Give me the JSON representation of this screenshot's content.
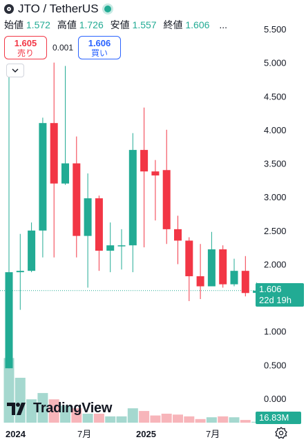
{
  "header": {
    "title": "JTO / TetherUS",
    "ohlc": [
      {
        "label": "始値",
        "value": "1.572"
      },
      {
        "label": "高値",
        "value": "1.726"
      },
      {
        "label": "安値",
        "value": "1.557"
      },
      {
        "label": "終値",
        "value": "1.606"
      }
    ],
    "more": "..."
  },
  "trade": {
    "sell_price": "1.605",
    "sell_label": "売り",
    "spread": "0.001",
    "buy_price": "1.606",
    "buy_label": "買い"
  },
  "price_label": {
    "price": "1.606",
    "countdown": "22d 19h"
  },
  "volume_label": "16.83M",
  "watermark": "TradingView",
  "colors": {
    "up": "#22ab94",
    "down": "#f23645",
    "vol_up": "#a5d8cf",
    "vol_down": "#f7b5ba",
    "text": "#131722"
  },
  "icons": {
    "logo": "jito-logo-icon",
    "live": "live-status-dot-icon",
    "collapse": "chevron-down-icon",
    "settings": "gear-icon"
  },
  "chart_data": {
    "type": "candlestick",
    "interval": "monthly",
    "y_ticks": [
      "5.500",
      "5.000",
      "4.500",
      "4.000",
      "3.500",
      "3.000",
      "2.500",
      "2.000",
      "1.606",
      "1.000",
      "0.500",
      "0.000"
    ],
    "x_ticks": [
      "2024",
      "7月",
      "2025",
      "7月"
    ],
    "ylim": [
      0.0,
      5.5
    ],
    "current_price": 1.606,
    "candles": [
      {
        "o": 0.45,
        "h": 4.85,
        "l": 0.45,
        "c": 1.88
      },
      {
        "o": 1.88,
        "h": 2.45,
        "l": 1.32,
        "c": 1.9
      },
      {
        "o": 1.9,
        "h": 2.62,
        "l": 1.88,
        "c": 2.5
      },
      {
        "o": 2.5,
        "h": 4.18,
        "l": 2.1,
        "c": 4.1
      },
      {
        "o": 4.1,
        "h": 5.0,
        "l": 2.1,
        "c": 3.2
      },
      {
        "o": 3.2,
        "h": 4.95,
        "l": 3.18,
        "c": 3.5
      },
      {
        "o": 3.5,
        "h": 3.9,
        "l": 2.1,
        "c": 2.42
      },
      {
        "o": 2.42,
        "h": 3.35,
        "l": 1.65,
        "c": 2.98
      },
      {
        "o": 2.98,
        "h": 3.02,
        "l": 1.9,
        "c": 2.2
      },
      {
        "o": 2.2,
        "h": 2.62,
        "l": 1.88,
        "c": 2.28
      },
      {
        "o": 2.28,
        "h": 2.52,
        "l": 1.92,
        "c": 2.28
      },
      {
        "o": 2.28,
        "h": 3.95,
        "l": 1.88,
        "c": 3.7
      },
      {
        "o": 3.7,
        "h": 4.33,
        "l": 2.25,
        "c": 3.38
      },
      {
        "o": 3.38,
        "h": 3.55,
        "l": 2.65,
        "c": 3.32
      },
      {
        "o": 3.4,
        "h": 4.0,
        "l": 2.3,
        "c": 2.52
      },
      {
        "o": 2.52,
        "h": 2.72,
        "l": 2.0,
        "c": 2.35
      },
      {
        "o": 2.35,
        "h": 2.4,
        "l": 1.45,
        "c": 1.82
      },
      {
        "o": 1.82,
        "h": 2.3,
        "l": 1.48,
        "c": 1.67
      },
      {
        "o": 1.67,
        "h": 2.48,
        "l": 1.7,
        "c": 2.22
      },
      {
        "o": 2.22,
        "h": 2.28,
        "l": 1.65,
        "c": 1.7
      },
      {
        "o": 1.7,
        "h": 2.08,
        "l": 1.67,
        "c": 1.9
      },
      {
        "o": 1.9,
        "h": 2.12,
        "l": 1.52,
        "c": 1.57
      },
      {
        "o": 1.572,
        "h": 1.726,
        "l": 1.557,
        "c": 1.606
      }
    ],
    "volume": [
      {
        "v": 0.72,
        "up": true
      },
      {
        "v": 0.5,
        "up": true
      },
      {
        "v": 0.26,
        "up": true
      },
      {
        "v": 0.33,
        "up": true
      },
      {
        "v": 0.26,
        "up": false
      },
      {
        "v": 0.19,
        "up": true
      },
      {
        "v": 0.16,
        "up": false
      },
      {
        "v": 0.1,
        "up": true
      },
      {
        "v": 0.1,
        "up": false
      },
      {
        "v": 0.07,
        "up": true
      },
      {
        "v": 0.07,
        "up": true
      },
      {
        "v": 0.16,
        "up": true
      },
      {
        "v": 0.13,
        "up": false
      },
      {
        "v": 0.08,
        "up": false
      },
      {
        "v": 0.1,
        "up": false
      },
      {
        "v": 0.09,
        "up": false
      },
      {
        "v": 0.07,
        "up": false
      },
      {
        "v": 0.04,
        "up": false
      },
      {
        "v": 0.06,
        "up": true
      },
      {
        "v": 0.07,
        "up": false
      },
      {
        "v": 0.06,
        "up": true
      },
      {
        "v": 0.03,
        "up": false
      },
      {
        "v": 0.01,
        "up": true
      }
    ]
  }
}
